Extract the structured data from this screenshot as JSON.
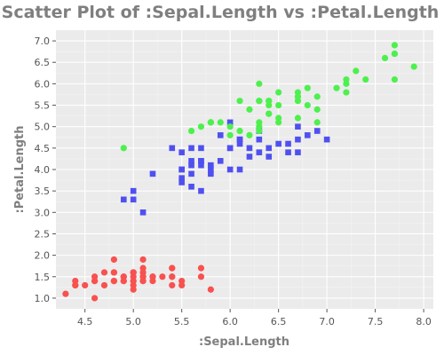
{
  "chart_data": {
    "type": "scatter",
    "title": "Scatter Plot of :Sepal.Length vs :Petal.Length",
    "xlabel": ":Sepal.Length",
    "ylabel": ":Petal.Length",
    "xlim": [
      4.2,
      8.1
    ],
    "ylim": [
      0.75,
      7.25
    ],
    "x_ticks": [
      4.5,
      5.0,
      5.5,
      6.0,
      6.5,
      7.0,
      7.5,
      8.0
    ],
    "x_tick_labels": [
      "4.5",
      "5.0",
      "5.5",
      "6.0",
      "6.5",
      "7.0",
      "7.5",
      "8.0"
    ],
    "y_ticks": [
      1.0,
      1.5,
      2.0,
      2.5,
      3.0,
      3.5,
      4.0,
      4.5,
      5.0,
      5.5,
      6.0,
      6.5,
      7.0
    ],
    "y_tick_labels": [
      "1.0",
      "1.5",
      "2.0",
      "2.5",
      "3.0",
      "3.5",
      "4.0",
      "4.5",
      "5.0",
      "5.5",
      "6.0",
      "6.5",
      "7.0"
    ],
    "grid": true,
    "legend": "none",
    "background": "#ebebeb",
    "series": [
      {
        "color": "#f8514f",
        "marker": "circle",
        "points": [
          [
            5.1,
            1.4
          ],
          [
            4.9,
            1.4
          ],
          [
            4.7,
            1.3
          ],
          [
            4.6,
            1.5
          ],
          [
            5.0,
            1.4
          ],
          [
            5.4,
            1.7
          ],
          [
            4.6,
            1.4
          ],
          [
            5.0,
            1.5
          ],
          [
            4.4,
            1.4
          ],
          [
            4.9,
            1.5
          ],
          [
            5.4,
            1.5
          ],
          [
            4.8,
            1.6
          ],
          [
            4.8,
            1.4
          ],
          [
            4.3,
            1.1
          ],
          [
            5.8,
            1.2
          ],
          [
            5.7,
            1.5
          ],
          [
            5.4,
            1.3
          ],
          [
            5.1,
            1.4
          ],
          [
            5.7,
            1.7
          ],
          [
            5.1,
            1.5
          ],
          [
            5.4,
            1.7
          ],
          [
            5.1,
            1.5
          ],
          [
            4.6,
            1.0
          ],
          [
            5.1,
            1.7
          ],
          [
            4.8,
            1.9
          ],
          [
            5.0,
            1.6
          ],
          [
            5.0,
            1.6
          ],
          [
            5.2,
            1.5
          ],
          [
            5.2,
            1.4
          ],
          [
            4.7,
            1.6
          ],
          [
            4.8,
            1.6
          ],
          [
            5.4,
            1.5
          ],
          [
            5.2,
            1.5
          ],
          [
            5.5,
            1.4
          ],
          [
            4.9,
            1.5
          ],
          [
            5.0,
            1.2
          ],
          [
            5.5,
            1.3
          ],
          [
            4.9,
            1.4
          ],
          [
            4.4,
            1.3
          ],
          [
            5.1,
            1.5
          ],
          [
            5.0,
            1.3
          ],
          [
            4.5,
            1.3
          ],
          [
            4.4,
            1.3
          ],
          [
            5.0,
            1.6
          ],
          [
            5.1,
            1.9
          ],
          [
            4.8,
            1.4
          ],
          [
            5.1,
            1.6
          ],
          [
            4.6,
            1.4
          ],
          [
            5.3,
            1.5
          ],
          [
            5.0,
            1.4
          ]
        ]
      },
      {
        "color": "#5050f0",
        "marker": "square",
        "points": [
          [
            7.0,
            4.7
          ],
          [
            6.4,
            4.5
          ],
          [
            6.9,
            4.9
          ],
          [
            5.5,
            4.0
          ],
          [
            6.5,
            4.6
          ],
          [
            5.7,
            4.5
          ],
          [
            6.3,
            4.7
          ],
          [
            4.9,
            3.3
          ],
          [
            6.6,
            4.6
          ],
          [
            5.2,
            3.9
          ],
          [
            5.0,
            3.5
          ],
          [
            5.9,
            4.2
          ],
          [
            6.0,
            4.0
          ],
          [
            6.1,
            4.7
          ],
          [
            5.6,
            3.6
          ],
          [
            6.7,
            4.4
          ],
          [
            5.6,
            4.5
          ],
          [
            5.8,
            4.1
          ],
          [
            6.2,
            4.5
          ],
          [
            5.6,
            3.9
          ],
          [
            5.9,
            4.8
          ],
          [
            6.1,
            4.0
          ],
          [
            6.3,
            4.9
          ],
          [
            6.1,
            4.7
          ],
          [
            6.4,
            4.3
          ],
          [
            6.6,
            4.4
          ],
          [
            6.8,
            4.8
          ],
          [
            6.7,
            5.0
          ],
          [
            6.0,
            4.5
          ],
          [
            5.7,
            3.5
          ],
          [
            5.5,
            3.8
          ],
          [
            5.5,
            3.7
          ],
          [
            5.8,
            3.9
          ],
          [
            6.0,
            5.1
          ],
          [
            5.4,
            4.5
          ],
          [
            6.0,
            4.5
          ],
          [
            6.7,
            4.7
          ],
          [
            6.3,
            4.4
          ],
          [
            5.6,
            4.1
          ],
          [
            5.5,
            4.0
          ],
          [
            5.5,
            4.4
          ],
          [
            6.1,
            4.6
          ],
          [
            5.8,
            4.0
          ],
          [
            5.0,
            3.3
          ],
          [
            5.6,
            4.2
          ],
          [
            5.7,
            4.2
          ],
          [
            5.7,
            4.2
          ],
          [
            6.2,
            4.3
          ],
          [
            5.1,
            3.0
          ],
          [
            5.7,
            4.1
          ]
        ]
      },
      {
        "color": "#4ef04e",
        "marker": "circle",
        "points": [
          [
            6.3,
            6.0
          ],
          [
            5.8,
            5.1
          ],
          [
            7.1,
            5.9
          ],
          [
            6.3,
            5.6
          ],
          [
            6.5,
            5.8
          ],
          [
            7.6,
            6.6
          ],
          [
            4.9,
            4.5
          ],
          [
            7.3,
            6.3
          ],
          [
            6.7,
            5.8
          ],
          [
            7.2,
            6.1
          ],
          [
            6.5,
            5.1
          ],
          [
            6.4,
            5.3
          ],
          [
            6.8,
            5.5
          ],
          [
            5.7,
            5.0
          ],
          [
            5.8,
            5.1
          ],
          [
            6.4,
            5.3
          ],
          [
            6.5,
            5.5
          ],
          [
            7.7,
            6.7
          ],
          [
            7.7,
            6.9
          ],
          [
            6.0,
            5.0
          ],
          [
            6.9,
            5.7
          ],
          [
            5.6,
            4.9
          ],
          [
            7.7,
            6.7
          ],
          [
            6.3,
            4.9
          ],
          [
            6.7,
            5.7
          ],
          [
            7.2,
            6.0
          ],
          [
            6.2,
            4.8
          ],
          [
            6.1,
            4.9
          ],
          [
            6.4,
            5.6
          ],
          [
            7.2,
            5.8
          ],
          [
            7.4,
            6.1
          ],
          [
            7.9,
            6.4
          ],
          [
            6.4,
            5.6
          ],
          [
            6.3,
            5.1
          ],
          [
            6.1,
            5.6
          ],
          [
            7.7,
            6.1
          ],
          [
            6.3,
            5.6
          ],
          [
            6.4,
            5.5
          ],
          [
            6.0,
            4.8
          ],
          [
            6.9,
            5.4
          ],
          [
            6.7,
            5.6
          ],
          [
            6.9,
            5.1
          ],
          [
            5.8,
            5.1
          ],
          [
            6.8,
            5.9
          ],
          [
            6.7,
            5.7
          ],
          [
            6.7,
            5.2
          ],
          [
            6.3,
            5.0
          ],
          [
            6.5,
            5.2
          ],
          [
            6.2,
            5.4
          ],
          [
            5.9,
            5.1
          ]
        ]
      }
    ]
  }
}
